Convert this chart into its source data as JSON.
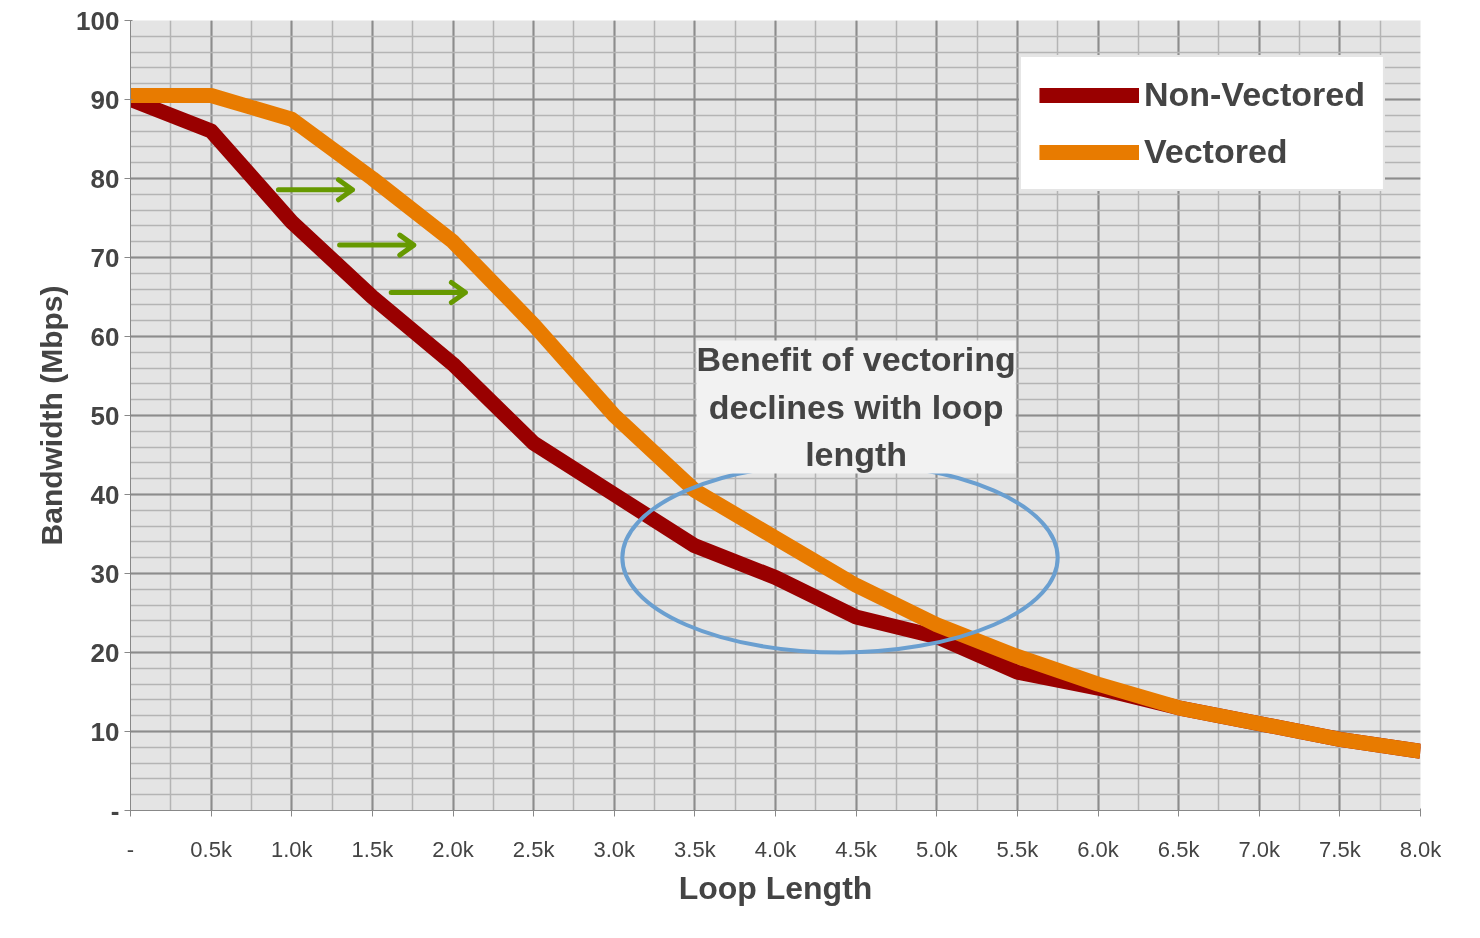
{
  "chart_data": {
    "type": "line",
    "xlabel": "Loop Length",
    "ylabel": "Bandwidth (Mbps)",
    "x": [
      0,
      0.5,
      1.0,
      1.5,
      2.0,
      2.5,
      3.0,
      3.5,
      4.0,
      4.5,
      5.0,
      5.5,
      6.0,
      6.5,
      7.0,
      7.5,
      8.0
    ],
    "series": [
      {
        "name": "Non-Vectored",
        "color": "#990000",
        "values": [
          90,
          86,
          74.5,
          65,
          56.5,
          46.5,
          40,
          33.5,
          29.5,
          24.5,
          22,
          17.5,
          15.5,
          13,
          11,
          9,
          7.5
        ]
      },
      {
        "name": "Vectored",
        "color": "#e87b00",
        "values": [
          90.5,
          90.5,
          87.5,
          80,
          72,
          61.5,
          50,
          40.5,
          34.5,
          28.5,
          23.5,
          19.5,
          16,
          13,
          11,
          9,
          7.5
        ]
      }
    ],
    "xlim": [
      0,
      8.0
    ],
    "xticks": [
      {
        "value": 0,
        "label": "-"
      },
      {
        "value": 0.5,
        "label": "0.5k"
      },
      {
        "value": 1.0,
        "label": "1.0k"
      },
      {
        "value": 1.5,
        "label": "1.5k"
      },
      {
        "value": 2.0,
        "label": "2.0k"
      },
      {
        "value": 2.5,
        "label": "2.5k"
      },
      {
        "value": 3.0,
        "label": "3.0k"
      },
      {
        "value": 3.5,
        "label": "3.5k"
      },
      {
        "value": 4.0,
        "label": "4.0k"
      },
      {
        "value": 4.5,
        "label": "4.5k"
      },
      {
        "value": 5.0,
        "label": "5.0k"
      },
      {
        "value": 5.5,
        "label": "5.5k"
      },
      {
        "value": 6.0,
        "label": "6.0k"
      },
      {
        "value": 6.5,
        "label": "6.5k"
      },
      {
        "value": 7.0,
        "label": "7.0k"
      },
      {
        "value": 7.5,
        "label": "7.5k"
      },
      {
        "value": 8.0,
        "label": "8.0k"
      }
    ],
    "ylim": [
      0,
      100
    ],
    "yticks": [
      {
        "value": 0,
        "label": "-"
      },
      10,
      20,
      30,
      40,
      50,
      60,
      70,
      80,
      90,
      100
    ],
    "annotations": [
      "Benefit of vectoring declines with loop length"
    ],
    "grid": true,
    "legend": "top right",
    "marker": "none",
    "line_style": "solid"
  }
}
